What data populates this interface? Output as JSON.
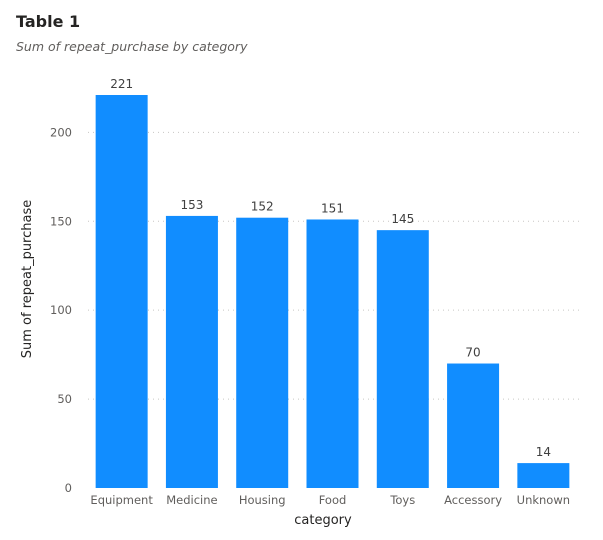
{
  "visual": {
    "title": "Table 1",
    "subtitle": "Sum of repeat_purchase by category"
  },
  "chart_data": {
    "type": "bar",
    "title": "Table 1",
    "subtitle": "Sum of repeat_purchase by category",
    "xlabel": "category",
    "ylabel": "Sum of repeat_purchase",
    "categories": [
      "Equipment",
      "Medicine",
      "Housing",
      "Food",
      "Toys",
      "Accessory",
      "Unknown"
    ],
    "values": [
      221,
      153,
      152,
      151,
      145,
      70,
      14
    ],
    "ylim": [
      0,
      221
    ],
    "yticks": [
      0,
      50,
      100,
      150,
      200
    ],
    "grid": true,
    "bar_color": "#118DFF",
    "grid_color": "#C8C6C4"
  }
}
